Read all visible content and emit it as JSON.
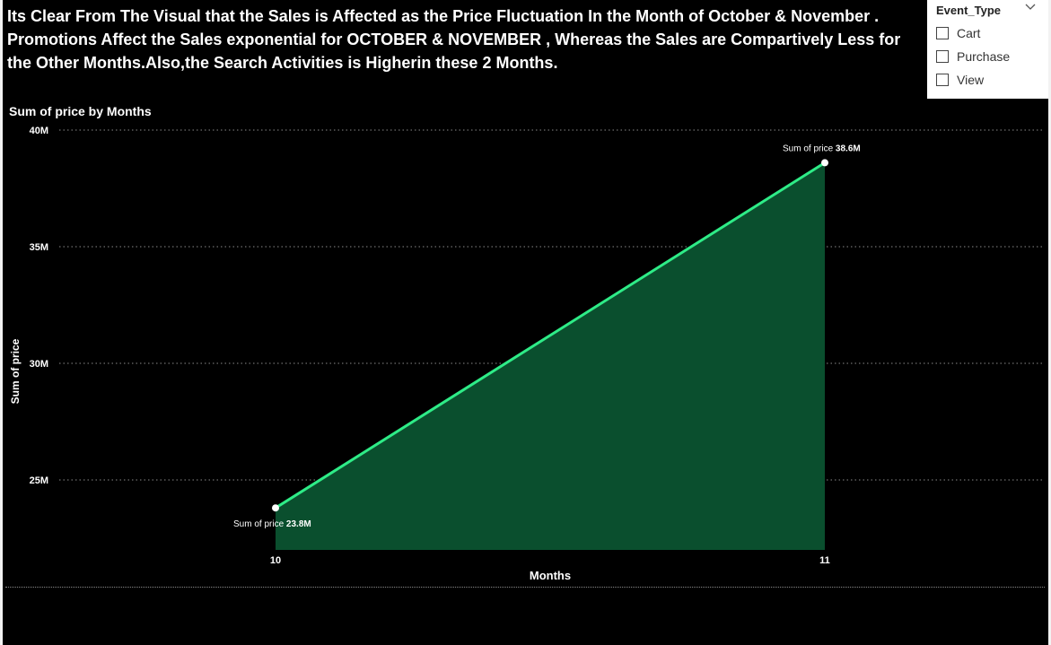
{
  "headline": {
    "line1": "Its Clear From The Visual that the Sales is Affected as the Price Fluctuation In the Month of October & November .",
    "line2": "Promotions Affect the Sales exponential for OCTOBER & NOVEMBER , Whereas the Sales are Compartively Less for the Other Months.Also,the Search Activities is Higherin these 2 Months."
  },
  "slicer": {
    "title": "Event_Type",
    "options": [
      "Cart",
      "Purchase",
      "View"
    ]
  },
  "colors": {
    "line": "#2eec87",
    "area": "#0a4f2e",
    "gridline": "#8a8a8a"
  },
  "chart_data": {
    "type": "area",
    "title": "Sum of price by Months",
    "xlabel": "Months",
    "ylabel": "Sum of price",
    "x": [
      "10",
      "11"
    ],
    "series": [
      {
        "name": "Sum of price",
        "values": [
          23.8,
          38.6
        ],
        "labels": [
          "23.8M",
          "38.6M"
        ]
      }
    ],
    "ylim": [
      22,
      40
    ],
    "yticks": [
      25,
      30,
      35,
      40
    ],
    "ytick_labels": [
      "25M",
      "30M",
      "35M",
      "40M"
    ],
    "grid": true
  }
}
